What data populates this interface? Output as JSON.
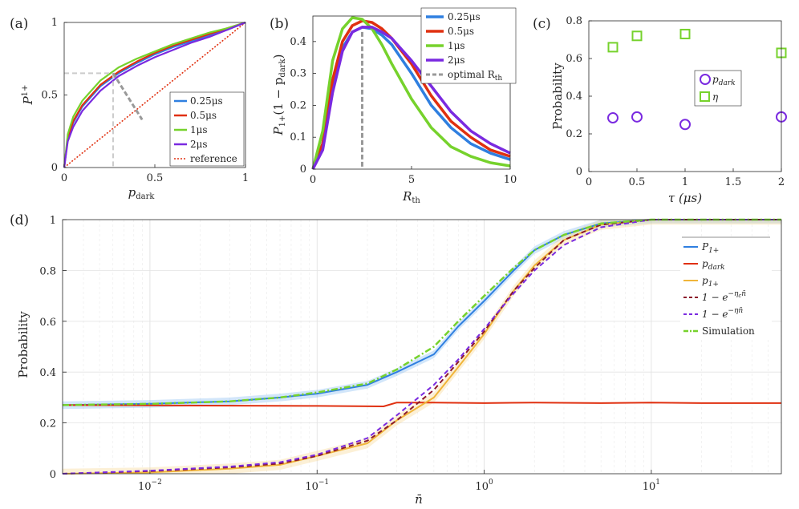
{
  "colors": {
    "blue": "#2f7fe0",
    "red": "#e03010",
    "green": "#76d22c",
    "purple": "#7a2ae0",
    "orange": "#f0b53a",
    "darkred": "#8b1a2a",
    "gray": "#999999",
    "lightgray": "#cccccc"
  },
  "chart_data": [
    {
      "panel": "(a)",
      "type": "line",
      "xlabel": "p",
      "xlabel_sub": "dark",
      "ylabel": "P",
      "ylabel_sub": "1+",
      "xlim": [
        0,
        1
      ],
      "ylim": [
        0,
        1
      ],
      "xticks": [
        "0",
        "0.5",
        "1"
      ],
      "yticks": [
        "0",
        "0.5",
        "1"
      ],
      "legend": [
        "0.25μs",
        "0.5μs",
        "1μs",
        "2μs",
        "reference"
      ],
      "series": [
        {
          "name": "0.25μs",
          "x": [
            0,
            0.02,
            0.05,
            0.1,
            0.2,
            0.3,
            0.4,
            0.5,
            0.6,
            0.7,
            0.8,
            0.9,
            1.0
          ],
          "y": [
            0,
            0.2,
            0.31,
            0.42,
            0.56,
            0.65,
            0.72,
            0.78,
            0.83,
            0.87,
            0.91,
            0.95,
            1.0
          ]
        },
        {
          "name": "0.5μs",
          "x": [
            0,
            0.02,
            0.05,
            0.1,
            0.2,
            0.3,
            0.4,
            0.5,
            0.6,
            0.7,
            0.8,
            0.9,
            1.0
          ],
          "y": [
            0,
            0.21,
            0.32,
            0.43,
            0.57,
            0.66,
            0.73,
            0.79,
            0.84,
            0.88,
            0.92,
            0.96,
            1.0
          ]
        },
        {
          "name": "1μs",
          "x": [
            0,
            0.02,
            0.05,
            0.1,
            0.2,
            0.3,
            0.4,
            0.5,
            0.6,
            0.7,
            0.8,
            0.9,
            1.0
          ],
          "y": [
            0,
            0.23,
            0.35,
            0.46,
            0.6,
            0.69,
            0.75,
            0.8,
            0.85,
            0.89,
            0.93,
            0.96,
            1.0
          ]
        },
        {
          "name": "2μs",
          "x": [
            0,
            0.02,
            0.05,
            0.1,
            0.2,
            0.3,
            0.4,
            0.5,
            0.6,
            0.7,
            0.8,
            0.9,
            1.0
          ],
          "y": [
            0,
            0.18,
            0.28,
            0.39,
            0.53,
            0.63,
            0.7,
            0.76,
            0.81,
            0.86,
            0.9,
            0.95,
            1.0
          ]
        },
        {
          "name": "reference",
          "x": [
            0,
            1
          ],
          "y": [
            0,
            1
          ]
        }
      ],
      "annotations": {
        "optimal_point": {
          "x": 0.27,
          "y": 0.65
        },
        "slope_segment": [
          [
            0.27,
            0.65
          ],
          [
            0.43,
            0.33
          ]
        ]
      }
    },
    {
      "panel": "(b)",
      "type": "line",
      "xlabel": "R",
      "xlabel_sub": "th",
      "ylabel": "P",
      "ylabel_sub": "1+",
      "ylabel_rest": "(1 − p",
      "ylabel_sub2": "dark",
      "ylabel_end": ")",
      "xlim": [
        0,
        10
      ],
      "ylim": [
        0,
        0.48
      ],
      "xticks": [
        "0",
        "5",
        "10"
      ],
      "yticks": [
        "0",
        "0.1",
        "0.2",
        "0.3",
        "0.4"
      ],
      "legend": [
        "0.25μs",
        "0.5μs",
        "1μs",
        "2μs",
        "optimal R",
        "th"
      ],
      "series": [
        {
          "name": "0.25μs",
          "x": [
            0,
            0.5,
            1,
            1.5,
            2,
            2.5,
            3,
            3.5,
            4,
            5,
            6,
            7,
            8,
            9,
            10
          ],
          "y": [
            0,
            0.08,
            0.27,
            0.38,
            0.43,
            0.445,
            0.44,
            0.42,
            0.39,
            0.3,
            0.2,
            0.13,
            0.08,
            0.05,
            0.03
          ]
        },
        {
          "name": "0.5μs",
          "x": [
            0,
            0.5,
            1,
            1.5,
            2,
            2.5,
            3,
            3.5,
            4,
            5,
            6,
            7,
            8,
            9,
            10
          ],
          "y": [
            0,
            0.08,
            0.28,
            0.4,
            0.45,
            0.465,
            0.46,
            0.44,
            0.41,
            0.33,
            0.23,
            0.15,
            0.1,
            0.06,
            0.04
          ]
        },
        {
          "name": "1μs",
          "x": [
            0,
            0.5,
            1,
            1.5,
            2,
            2.5,
            3,
            3.5,
            4,
            5,
            6,
            7,
            8,
            9,
            10
          ],
          "y": [
            0,
            0.12,
            0.34,
            0.44,
            0.475,
            0.47,
            0.44,
            0.39,
            0.33,
            0.22,
            0.13,
            0.07,
            0.04,
            0.02,
            0.01
          ]
        },
        {
          "name": "2μs",
          "x": [
            0,
            0.5,
            1,
            1.5,
            2,
            2.5,
            3,
            3.5,
            4,
            5,
            6,
            7,
            8,
            9,
            10
          ],
          "y": [
            0,
            0.06,
            0.24,
            0.37,
            0.43,
            0.445,
            0.445,
            0.43,
            0.41,
            0.34,
            0.26,
            0.18,
            0.12,
            0.08,
            0.05
          ]
        }
      ],
      "optimal_Rth": 2.5
    },
    {
      "panel": "(c)",
      "type": "scatter",
      "xlabel": "τ (μs)",
      "ylabel": "Probability",
      "xlim": [
        0,
        2
      ],
      "ylim": [
        0,
        0.8
      ],
      "xticks": [
        "0",
        "0.5",
        "1",
        "1.5",
        "2"
      ],
      "yticks": [
        "0",
        "0.2",
        "0.4",
        "0.6",
        "0.8"
      ],
      "legend": [
        "p",
        "dark",
        "η"
      ],
      "series": [
        {
          "name": "pdark",
          "x": [
            0.25,
            0.5,
            1,
            2
          ],
          "y": [
            0.285,
            0.29,
            0.25,
            0.29
          ]
        },
        {
          "name": "eta",
          "x": [
            0.25,
            0.5,
            1,
            2
          ],
          "y": [
            0.66,
            0.72,
            0.73,
            0.63
          ]
        }
      ]
    },
    {
      "panel": "(d)",
      "type": "line",
      "xscale": "log",
      "xlabel": "n̄",
      "ylabel": "Probability",
      "xlim": [
        0.003,
        60
      ],
      "ylim": [
        0,
        1
      ],
      "xticks_base": [
        "10",
        "10",
        "10",
        "10"
      ],
      "xticks_exp": [
        "−2",
        "−1",
        "0",
        "1"
      ],
      "yticks": [
        "0",
        "0.2",
        "0.4",
        "0.6",
        "0.8",
        "1"
      ],
      "legend": [
        "P",
        "1+",
        "p",
        "dark",
        "p",
        "1+",
        "1 − e",
        "−η",
        "c",
        "n̄",
        "1 − e",
        "−ηn̄",
        "Simulation"
      ],
      "series": [
        {
          "name": "P1+",
          "x": [
            0.003,
            0.01,
            0.03,
            0.06,
            0.1,
            0.2,
            0.3,
            0.5,
            0.7,
            1.0,
            1.5,
            2,
            3,
            5,
            10,
            60
          ],
          "y": [
            0.27,
            0.275,
            0.285,
            0.3,
            0.315,
            0.35,
            0.4,
            0.47,
            0.58,
            0.68,
            0.8,
            0.88,
            0.94,
            0.985,
            1.0,
            1.0
          ]
        },
        {
          "name": "pdark",
          "x": [
            0.003,
            0.1,
            0.25,
            0.3,
            0.5,
            1,
            2,
            5,
            10,
            20,
            60
          ],
          "y": [
            0.27,
            0.267,
            0.265,
            0.28,
            0.28,
            0.278,
            0.28,
            0.278,
            0.28,
            0.278,
            0.278
          ]
        },
        {
          "name": "p1+",
          "x": [
            0.003,
            0.01,
            0.03,
            0.06,
            0.1,
            0.2,
            0.3,
            0.5,
            0.7,
            1.0,
            1.5,
            2,
            3,
            5,
            10,
            60
          ],
          "y": [
            0,
            0.005,
            0.02,
            0.035,
            0.07,
            0.12,
            0.21,
            0.3,
            0.42,
            0.55,
            0.72,
            0.82,
            0.92,
            0.98,
            1.0,
            1.0
          ]
        },
        {
          "name": "1-exp(-eta_c n)",
          "x": [
            0.003,
            0.01,
            0.03,
            0.06,
            0.1,
            0.2,
            0.3,
            0.5,
            0.7,
            1.0,
            1.5,
            2,
            3,
            5,
            10,
            60
          ],
          "y": [
            0,
            0.01,
            0.025,
            0.04,
            0.07,
            0.13,
            0.21,
            0.33,
            0.44,
            0.56,
            0.72,
            0.81,
            0.92,
            0.98,
            1.0,
            1.0
          ]
        },
        {
          "name": "1-exp(-eta n)",
          "x": [
            0.003,
            0.01,
            0.03,
            0.06,
            0.1,
            0.2,
            0.3,
            0.5,
            0.7,
            1.0,
            1.5,
            2,
            3,
            5,
            10,
            60
          ],
          "y": [
            0,
            0.012,
            0.028,
            0.045,
            0.075,
            0.14,
            0.23,
            0.35,
            0.45,
            0.57,
            0.71,
            0.8,
            0.9,
            0.97,
            1.0,
            1.0
          ]
        },
        {
          "name": "Simulation",
          "x": [
            0.003,
            0.01,
            0.03,
            0.06,
            0.1,
            0.2,
            0.3,
            0.5,
            0.7,
            1.0,
            1.5,
            2,
            3,
            5,
            10,
            60
          ],
          "y": [
            0.27,
            0.275,
            0.285,
            0.3,
            0.32,
            0.355,
            0.41,
            0.5,
            0.6,
            0.7,
            0.81,
            0.88,
            0.94,
            0.985,
            1.0,
            1.0
          ]
        }
      ]
    }
  ]
}
